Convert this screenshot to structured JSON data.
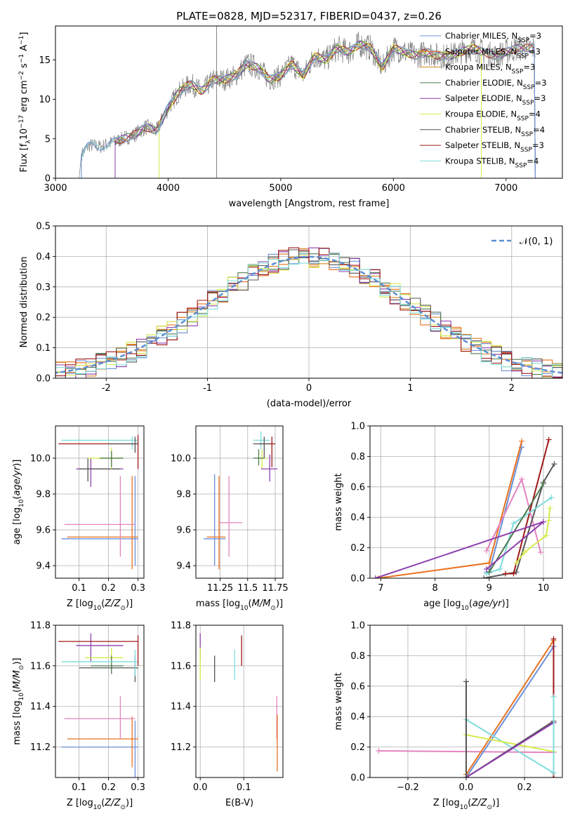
{
  "figure": {
    "title": "PLATE=0828, MJD=52317, FIBERID=0437, z=0.26"
  },
  "colors": {
    "Chabrier MILES": "#6a8fd8",
    "Salpeter MILES": "#e8711e",
    "Kroupa MILES": "#d5831e",
    "Chabrier ELODIE": "#4f7a4f",
    "Salpeter ELODIE": "#8e3fae",
    "Kroupa ELODIE": "#d6ea4a",
    "Chabrier STELIB": "#555555",
    "Salpeter STELIB": "#a01818",
    "Kroupa STELIB": "#7fdcdc",
    "extra_pink": "#e484c0",
    "gaussian": "#5b8fd3",
    "spectrum": "#808080"
  },
  "chart_data": [
    {
      "id": "spectrum",
      "type": "line",
      "xlabel": "wavelength [Angstrom, rest frame]",
      "ylabel": "Flux [f_λ 10^-17 erg cm^-2 s^-1 A^-1]",
      "xlim": [
        3000,
        7500
      ],
      "ylim": [
        0,
        19.3
      ],
      "xticks": [
        3000,
        4000,
        5000,
        6000,
        7000
      ],
      "yticks": [
        0,
        5,
        10,
        15
      ],
      "legend_position": "top-right",
      "legend": [
        {
          "label": "Chabrier MILES, N",
          "sub": "SSP",
          "suffix": "=3",
          "color": "#6a8fd8"
        },
        {
          "label": "Salpeter MILES, N",
          "sub": "SSP",
          "suffix": "=3",
          "color": "#e8711e"
        },
        {
          "label": "Kroupa MILES, N",
          "sub": "SSP",
          "suffix": "=3",
          "color": "#d5831e"
        },
        {
          "label": "Chabrier ELODIE, N",
          "sub": "SSP",
          "suffix": "=3",
          "color": "#4f7a4f"
        },
        {
          "label": "Salpeter ELODIE, N",
          "sub": "SSP",
          "suffix": "=3",
          "color": "#8e3fae"
        },
        {
          "label": "Kroupa ELODIE, N",
          "sub": "SSP",
          "suffix": "=4",
          "color": "#d6ea4a"
        },
        {
          "label": "Chabrier STELIB, N",
          "sub": "SSP",
          "suffix": "=4",
          "color": "#555555"
        },
        {
          "label": "Salpeter STELIB, N",
          "sub": "SSP",
          "suffix": "=3",
          "color": "#a01818"
        },
        {
          "label": "Kroupa STELIB, N",
          "sub": "SSP",
          "suffix": "=4",
          "color": "#7fdcdc"
        }
      ],
      "spectrum_x": [
        3210,
        3230,
        3300,
        3400,
        3500,
        3600,
        3700,
        3800,
        3900,
        4000,
        4100,
        4200,
        4300,
        4400,
        4500,
        4600,
        4700,
        4800,
        4900,
        5000,
        5100,
        5200,
        5300,
        5400,
        5500,
        5600,
        5700,
        5800,
        5900,
        6000,
        6100,
        6200,
        6300,
        6400,
        6500,
        6600,
        6700,
        6800,
        6900,
        7000,
        7100,
        7200,
        7260
      ],
      "spectrum_y": [
        0,
        3.0,
        4.2,
        4.0,
        4.5,
        5.0,
        5.5,
        6.5,
        6.0,
        9.0,
        11.0,
        12.0,
        11.0,
        12.5,
        12.5,
        13.0,
        14.5,
        14.0,
        12.5,
        13.0,
        14.5,
        13.0,
        15.5,
        15.0,
        16.5,
        16.0,
        17.0,
        16.5,
        14.0,
        16.5,
        16.0,
        15.5,
        16.0,
        15.5,
        15.5,
        16.0,
        16.5,
        16.0,
        15.5,
        16.0,
        16.5,
        16.5,
        16.5
      ]
    },
    {
      "id": "histogram",
      "type": "bar",
      "xlabel": "(data-model)/error",
      "ylabel": "Normed distribution",
      "xlim": [
        -2.5,
        2.5
      ],
      "ylim": [
        0,
        0.5
      ],
      "xticks": [
        -2,
        -1,
        0,
        1,
        2
      ],
      "yticks": [
        0.0,
        0.1,
        0.2,
        0.3,
        0.4,
        0.5
      ],
      "grid": true,
      "legend_position": "top-right",
      "gaussian_label": "𝒩(0, 1)",
      "bin_width": 0.1
    },
    {
      "id": "age_vs_Z",
      "type": "scatter",
      "xlabel": "Z [log10(Z/Z⊙)]",
      "ylabel": "age  [log10(age/yr)]",
      "xlim": [
        0.02,
        0.32
      ],
      "ylim": [
        9.33,
        10.18
      ],
      "xticks": [
        0.1,
        0.2,
        0.3
      ],
      "yticks": [
        9.4,
        9.6,
        9.8,
        10.0
      ],
      "grid": true,
      "points": [
        {
          "color": "#6a8fd8",
          "x": 0.29,
          "xlo": 0.04,
          "xhi": 0.3,
          "y": 9.55,
          "ylo": 9.4,
          "yhi": 9.9
        },
        {
          "color": "#e8711e",
          "x": 0.28,
          "xlo": 0.06,
          "xhi": 0.3,
          "y": 9.56,
          "ylo": 9.38,
          "yhi": 9.9
        },
        {
          "color": "#e484c0",
          "x": 0.24,
          "xlo": 0.05,
          "xhi": 0.29,
          "y": 9.63,
          "ylo": 9.45,
          "yhi": 9.9
        },
        {
          "color": "#8e3fae",
          "x": 0.14,
          "xlo": 0.09,
          "xhi": 0.25,
          "y": 9.94,
          "ylo": 9.84,
          "yhi": 10.0
        },
        {
          "color": "#555555",
          "x": 0.13,
          "xlo": 0.1,
          "xhi": 0.24,
          "y": 9.94,
          "ylo": 9.87,
          "yhi": 10.0
        },
        {
          "color": "#d6ea4a",
          "x": 0.21,
          "xlo": 0.13,
          "xhi": 0.25,
          "y": 10.0,
          "ylo": 9.94,
          "yhi": 10.06
        },
        {
          "color": "#4f7a4f",
          "x": 0.21,
          "xlo": 0.17,
          "xhi": 0.25,
          "y": 10.0,
          "ylo": 9.95,
          "yhi": 10.04
        },
        {
          "color": "#7fdcdc",
          "x": 0.28,
          "xlo": 0.04,
          "xhi": 0.3,
          "y": 10.1,
          "ylo": 10.05,
          "yhi": 10.12
        },
        {
          "color": "#a01818",
          "x": 0.3,
          "xlo": 0.03,
          "xhi": 0.3,
          "y": 10.08,
          "ylo": 9.94,
          "yhi": 10.13
        },
        {
          "color": "#555555",
          "x": 0.29,
          "xlo": 0.2,
          "xhi": 0.3,
          "y": 10.08,
          "ylo": 10.03,
          "yhi": 10.12
        }
      ]
    },
    {
      "id": "age_vs_mass",
      "type": "scatter",
      "xlabel": "mass [log10(M/M⊙)]",
      "ylabel": "",
      "xlim": [
        11.03,
        11.82
      ],
      "ylim": [
        9.33,
        10.18
      ],
      "xticks": [
        11.25,
        11.5,
        11.75
      ],
      "yticks": [
        9.4,
        9.6,
        9.8,
        10.0
      ],
      "grid": true,
      "points": [
        {
          "color": "#6a8fd8",
          "x": 11.2,
          "xlo": 11.1,
          "xhi": 11.3,
          "y": 9.55,
          "ylo": 9.4,
          "yhi": 9.91
        },
        {
          "color": "#e8711e",
          "x": 11.24,
          "xlo": 11.13,
          "xhi": 11.3,
          "y": 9.56,
          "ylo": 9.38,
          "yhi": 9.9
        },
        {
          "color": "#e484c0",
          "x": 11.33,
          "xlo": 11.24,
          "xhi": 11.45,
          "y": 9.64,
          "ylo": 9.45,
          "yhi": 9.9
        },
        {
          "color": "#d6ea4a",
          "x": 11.63,
          "xlo": 11.58,
          "xhi": 11.68,
          "y": 10.0,
          "ylo": 9.94,
          "yhi": 10.05
        },
        {
          "color": "#4f7a4f",
          "x": 11.6,
          "xlo": 11.55,
          "xhi": 11.65,
          "y": 10.0,
          "ylo": 9.96,
          "yhi": 10.05
        },
        {
          "color": "#8e3fae",
          "x": 11.7,
          "xlo": 11.62,
          "xhi": 11.77,
          "y": 9.94,
          "ylo": 9.87,
          "yhi": 10.02
        },
        {
          "color": "#7fdcdc",
          "x": 11.62,
          "xlo": 11.55,
          "xhi": 11.7,
          "y": 10.1,
          "ylo": 10.05,
          "yhi": 10.15
        },
        {
          "color": "#a01818",
          "x": 11.72,
          "xlo": 11.6,
          "xhi": 11.75,
          "y": 10.08,
          "ylo": 9.95,
          "yhi": 10.12
        },
        {
          "color": "#555555",
          "x": 11.65,
          "xlo": 11.55,
          "xhi": 11.7,
          "y": 10.08,
          "ylo": 10.0,
          "yhi": 10.12
        }
      ]
    },
    {
      "id": "weight_vs_age",
      "type": "line",
      "xlabel": "age  [log10(age/yr)]",
      "ylabel": "mass weight",
      "xlim": [
        6.8,
        10.35
      ],
      "ylim": [
        0,
        1.0
      ],
      "xticks": [
        7,
        8,
        9,
        10
      ],
      "yticks": [
        0.0,
        0.2,
        0.4,
        0.6,
        0.8,
        1.0
      ],
      "grid": true,
      "series": [
        {
          "color": "#6a8fd8",
          "x": [
            8.95,
            9.0,
            9.6
          ],
          "y": [
            0.04,
            0.04,
            0.86
          ]
        },
        {
          "color": "#e8711e",
          "x": [
            6.95,
            9.0,
            9.6
          ],
          "y": [
            0.0,
            0.1,
            0.9
          ]
        },
        {
          "color": "#e484c0",
          "x": [
            8.95,
            9.6,
            9.95
          ],
          "y": [
            0.18,
            0.65,
            0.17
          ]
        },
        {
          "color": "#555555",
          "x": [
            8.9,
            9.5,
            10.0,
            10.2
          ],
          "y": [
            0.0,
            0.04,
            0.63,
            0.75
          ]
        },
        {
          "color": "#a01818",
          "x": [
            9.3,
            9.45,
            10.1
          ],
          "y": [
            0.03,
            0.03,
            0.91
          ]
        },
        {
          "color": "#7fdcdc",
          "x": [
            8.95,
            9.2,
            9.45,
            10.15
          ],
          "y": [
            0.03,
            0.06,
            0.36,
            0.53
          ]
        },
        {
          "color": "#d6ea4a",
          "x": [
            9.5,
            9.65,
            10.05,
            10.1,
            10.12
          ],
          "y": [
            0.1,
            0.17,
            0.28,
            0.38,
            0.46
          ]
        },
        {
          "color": "#4f7a4f",
          "x": [
            9.0,
            10.0
          ],
          "y": [
            0.04,
            0.62
          ]
        },
        {
          "color": "#8e3fae",
          "x": [
            6.9,
            10.0
          ],
          "y": [
            0.0,
            0.37
          ]
        },
        {
          "color": "#8e3fae",
          "x": [
            8.95,
            10.0
          ],
          "y": [
            0.06,
            0.37
          ]
        }
      ]
    },
    {
      "id": "mass_vs_Z",
      "type": "scatter",
      "xlabel": "Z [log10(Z/Z⊙)]",
      "ylabel": "mass [log10(M/M⊙)]",
      "xlim": [
        0.02,
        0.32
      ],
      "ylim": [
        11.05,
        11.8
      ],
      "xticks": [
        0.1,
        0.2,
        0.3
      ],
      "yticks": [
        11.2,
        11.4,
        11.6,
        11.8
      ],
      "grid": true,
      "points": [
        {
          "color": "#6a8fd8",
          "x": 0.29,
          "xlo": 0.04,
          "xhi": 0.3,
          "y": 11.2,
          "ylo": 11.05,
          "yhi": 11.33
        },
        {
          "color": "#e8711e",
          "x": 0.28,
          "xlo": 0.06,
          "xhi": 0.3,
          "y": 11.24,
          "ylo": 11.1,
          "yhi": 11.35
        },
        {
          "color": "#e484c0",
          "x": 0.24,
          "xlo": 0.05,
          "xhi": 0.29,
          "y": 11.34,
          "ylo": 11.24,
          "yhi": 11.45
        },
        {
          "color": "#8e3fae",
          "x": 0.14,
          "xlo": 0.09,
          "xhi": 0.25,
          "y": 11.7,
          "ylo": 11.62,
          "yhi": 11.76
        },
        {
          "color": "#d6ea4a",
          "x": 0.21,
          "xlo": 0.12,
          "xhi": 0.25,
          "y": 11.64,
          "ylo": 11.58,
          "yhi": 11.69
        },
        {
          "color": "#4f7a4f",
          "x": 0.21,
          "xlo": 0.14,
          "xhi": 0.25,
          "y": 11.6,
          "ylo": 11.56,
          "yhi": 11.65
        },
        {
          "color": "#555555",
          "x": 0.29,
          "xlo": 0.1,
          "xhi": 0.3,
          "y": 11.59,
          "ylo": 11.52,
          "yhi": 11.65
        },
        {
          "color": "#7fdcdc",
          "x": 0.29,
          "xlo": 0.04,
          "xhi": 0.3,
          "y": 11.62,
          "ylo": 11.55,
          "yhi": 11.68
        },
        {
          "color": "#a01818",
          "x": 0.3,
          "xlo": 0.03,
          "xhi": 0.3,
          "y": 11.72,
          "ylo": 11.6,
          "yhi": 11.75
        }
      ]
    },
    {
      "id": "mass_vs_ebv",
      "type": "scatter",
      "xlabel": "E(B-V)",
      "ylabel": "",
      "xlim": [
        -0.01,
        0.19
      ],
      "ylim": [
        11.05,
        11.8
      ],
      "xticks": [
        0.0,
        0.1
      ],
      "yticks": [
        11.2,
        11.4,
        11.6,
        11.8
      ],
      "grid": true,
      "points": [
        {
          "color": "#8e3fae",
          "x": 0.0,
          "ylo": 11.62,
          "yhi": 11.76
        },
        {
          "color": "#d6ea4a",
          "x": 0.0,
          "ylo": 11.53,
          "yhi": 11.69
        },
        {
          "color": "#555555",
          "x": 0.033,
          "ylo": 11.52,
          "yhi": 11.65
        },
        {
          "color": "#7fdcdc",
          "x": 0.079,
          "ylo": 11.53,
          "yhi": 11.68
        },
        {
          "color": "#a01818",
          "x": 0.095,
          "ylo": 11.6,
          "yhi": 11.75
        },
        {
          "color": "#e484c0",
          "x": 0.176,
          "ylo": 11.24,
          "yhi": 11.45
        },
        {
          "color": "#e8711e",
          "x": 0.177,
          "ylo": 11.08,
          "yhi": 11.36
        }
      ]
    },
    {
      "id": "weight_vs_Z",
      "type": "line",
      "xlabel": "Z [log10(Z/Z⊙)]",
      "ylabel": "mass weight",
      "xlim": [
        -0.33,
        0.33
      ],
      "ylim": [
        0,
        1.0
      ],
      "xticks": [
        -0.2,
        0.0,
        0.2
      ],
      "yticks": [
        0.0,
        0.2,
        0.4,
        0.6,
        0.8,
        1.0
      ],
      "grid": true,
      "series": [
        {
          "color": "#e484c0",
          "x": [
            -0.3,
            0.3
          ],
          "y": [
            0.175,
            0.165
          ]
        },
        {
          "color": "#6a8fd8",
          "x": [
            0.0,
            0.3
          ],
          "y": [
            0.0,
            0.86
          ]
        },
        {
          "color": "#e8711e",
          "x": [
            0.0,
            0.3
          ],
          "y": [
            0.02,
            0.9
          ]
        },
        {
          "color": "#7fdcdc",
          "x": [
            0.0,
            0.3
          ],
          "y": [
            0.38,
            0.03
          ]
        },
        {
          "color": "#d6ea4a",
          "x": [
            0.0,
            0.3
          ],
          "y": [
            0.28,
            0.17
          ]
        },
        {
          "color": "#555555",
          "x": [
            0.0,
            0.3
          ],
          "y": [
            0.0,
            0.37
          ]
        },
        {
          "color": "#8e3fae",
          "x": [
            0.0,
            0.3
          ],
          "y": [
            0.0,
            0.36
          ]
        },
        {
          "color": "#8e3fae",
          "x": [
            0.0,
            0.0
          ],
          "y": [
            0.0,
            0.63
          ]
        },
        {
          "color": "#555555",
          "x": [
            0.0,
            0.0
          ],
          "y": [
            0.0,
            0.63
          ]
        },
        {
          "color": "#a01818",
          "x": [
            0.3,
            0.3
          ],
          "y": [
            0.0,
            0.91
          ]
        },
        {
          "color": "#7fdcdc",
          "x": [
            0.3,
            0.3
          ],
          "y": [
            0.03,
            0.53
          ]
        }
      ]
    }
  ]
}
